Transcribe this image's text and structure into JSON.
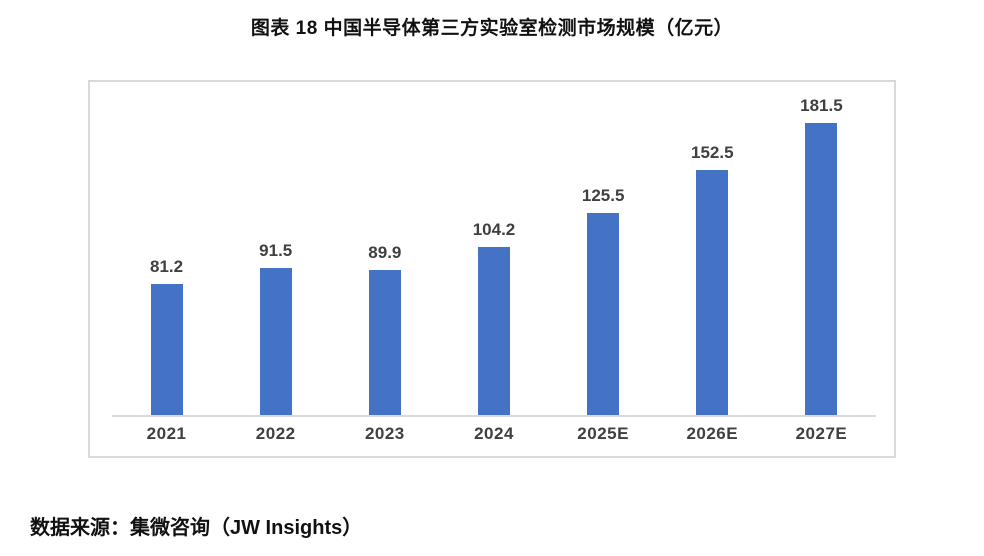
{
  "title": "图表 18 中国半导体第三方实验室检测市场规模（亿元）",
  "source": "数据来源：集微咨询（JW Insights）",
  "colors": {
    "bar": "#4472c4",
    "axis": "#d9d9d9",
    "panel_border": "#d9d9d9",
    "data_label": "#404040",
    "title_text": "#111111"
  },
  "chart_data": {
    "type": "bar",
    "title": "图表 18 中国半导体第三方实验室检测市场规模（亿元）",
    "categories": [
      "2021",
      "2022",
      "2023",
      "2024",
      "2025E",
      "2026E",
      "2027E"
    ],
    "values": [
      81.2,
      91.5,
      89.9,
      104.2,
      125.5,
      152.5,
      181.5
    ],
    "xlabel": "",
    "ylabel": "",
    "ylim": [
      0,
      207
    ],
    "grid": false,
    "legend": "none",
    "data_labels": true,
    "decimals": 1
  }
}
